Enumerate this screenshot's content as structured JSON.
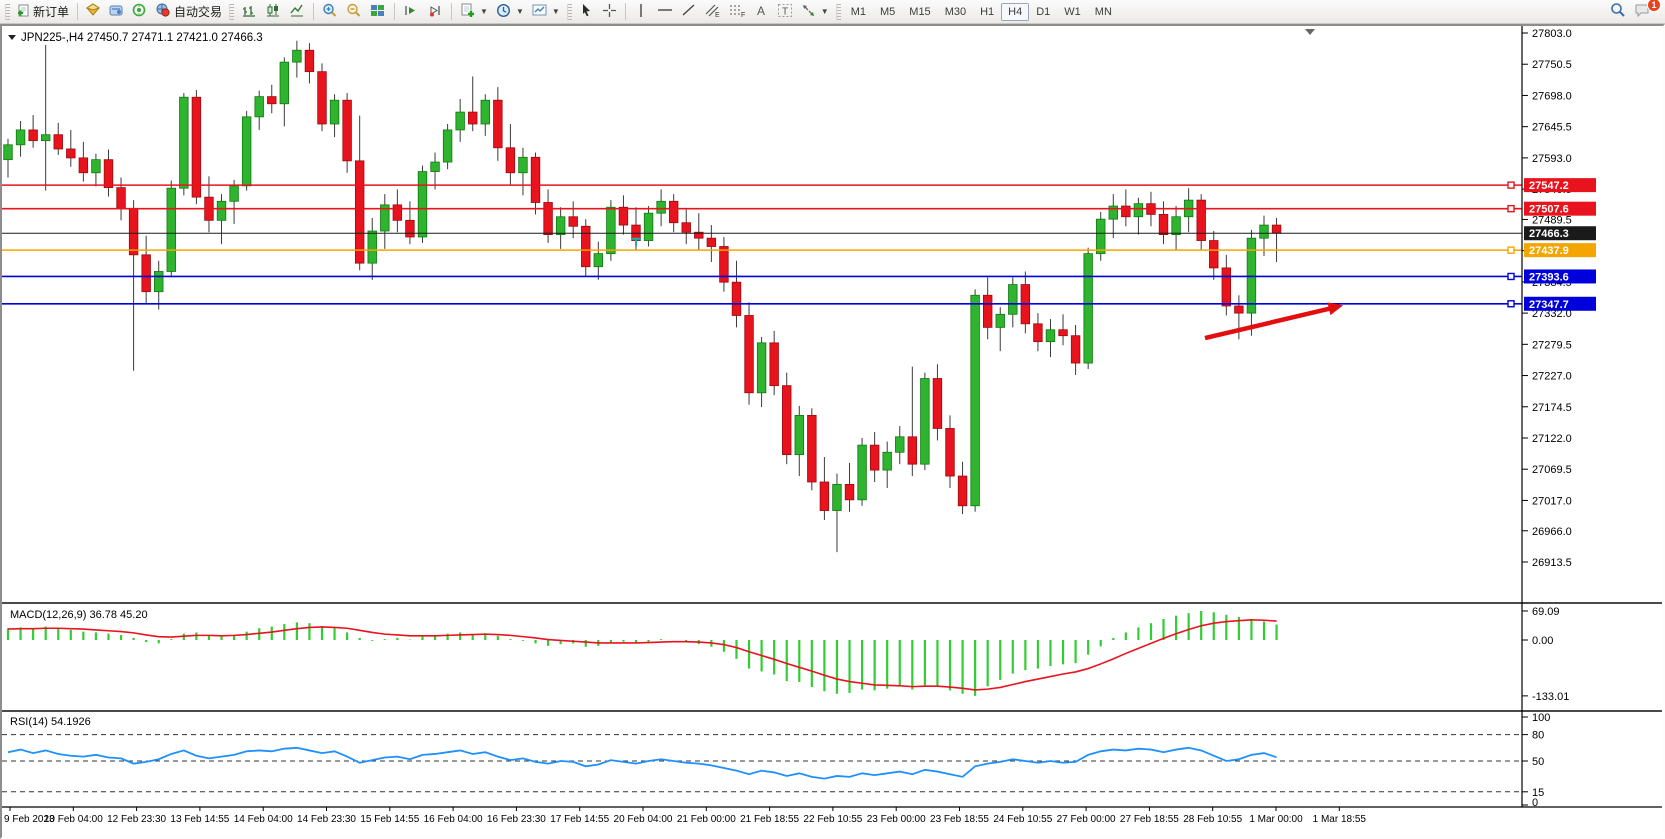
{
  "toolbar": {
    "new_order_label": "新订单",
    "auto_trading_label": "自动交易",
    "timeframes": [
      "M1",
      "M5",
      "M15",
      "M30",
      "H1",
      "H4",
      "D1",
      "W1",
      "MN"
    ],
    "active_timeframe": "H4",
    "chat_badge_count": "1",
    "icons": {
      "new-order-icon": "page-plus",
      "market-watch-icon": "gold-gem",
      "data-window-icon": "blue-panel",
      "signal-icon": "green-broadcast",
      "auto-trading-icon": "red-blue-globe",
      "bars-chart-icon": "ohlc-bars",
      "candles-chart-icon": "candlestick",
      "line-chart-icon": "polyline",
      "zoom-in-icon": "magnifier-plus",
      "zoom-out-icon": "magnifier-minus",
      "tile-windows-icon": "green-blue-grid",
      "shift-chart-icon": "play-bar",
      "auto-scroll-icon": "play-dot",
      "indicators-icon": "doc-green-plus",
      "periods-icon": "clock",
      "templates-icon": "chart-doc",
      "cursor-icon": "pointer-arrow",
      "crosshair-icon": "crosshair",
      "vertical-line-icon": "vbar",
      "horizontal-line-icon": "hbar",
      "trendline-icon": "diagonal",
      "channel-icon": "double-diagonal-E",
      "fibonacci-icon": "dotted-F",
      "text-icon": "letter-A",
      "text-label-icon": "boxed-T",
      "shapes-icon": "arrows-star",
      "search-icon": "magnifier",
      "chat-icon": "speech-bubble"
    }
  },
  "chart": {
    "title_symbol": "JPN225-,H4",
    "title_ohlc": "27450.7 27471.1 27421.0 27466.3"
  },
  "chart_data": [
    {
      "type": "candlestick",
      "symbol": "JPN225-",
      "timeframe": "H4",
      "open": 27450.7,
      "high": 27471.1,
      "low": 27421.0,
      "close": 27466.3,
      "ylim": [
        26913.5,
        27803.0
      ],
      "grid": false,
      "colors": {
        "up": "#2fb42f",
        "up_edge": "#0f7a0f",
        "down": "#e8131d",
        "down_edge": "#9c0a10",
        "wick": "#3a3a3a"
      },
      "y_ticks": [
        27803.0,
        27750.5,
        27698.0,
        27645.5,
        27593.0,
        27540.5,
        27489.5,
        27437.0,
        27384.5,
        27332.0,
        27279.5,
        27227.0,
        27174.5,
        27122.0,
        27069.5,
        27017.0,
        26966.0,
        26913.5
      ],
      "x_labels": [
        "9 Feb 2023",
        "10 Feb 04:00",
        "12 Feb 23:30",
        "13 Feb 14:55",
        "14 Feb 04:00",
        "14 Feb 23:30",
        "15 Feb 14:55",
        "16 Feb 04:00",
        "16 Feb 23:30",
        "17 Feb 14:55",
        "20 Feb 04:00",
        "21 Feb 00:00",
        "21 Feb 18:55",
        "22 Feb 10:55",
        "23 Feb 00:00",
        "23 Feb 18:55",
        "24 Feb 10:55",
        "27 Feb 00:00",
        "27 Feb 18:55",
        "28 Feb 10:55",
        "1 Mar 00:00",
        "1 Mar 18:55"
      ],
      "hlines": [
        {
          "price": 27547.2,
          "color": "#e8131d",
          "style": "solid",
          "tag": "27547.2",
          "tag_text": "#ffffff"
        },
        {
          "price": 27507.6,
          "color": "#e8131d",
          "style": "solid",
          "tag": "27507.6",
          "tag_text": "#ffffff"
        },
        {
          "price": 27466.3,
          "color": "#1a1a1a",
          "style": "solid",
          "tag": "27466.3",
          "tag_text": "#ffffff",
          "current": true
        },
        {
          "price": 27437.9,
          "color": "#f5a500",
          "style": "solid",
          "tag": "27437.9",
          "tag_text": "#ffffff"
        },
        {
          "price": 27393.6,
          "color": "#0000dc",
          "style": "solid",
          "tag": "27393.6",
          "tag_text": "#ffffff"
        },
        {
          "price": 27347.7,
          "color": "#0000dc",
          "style": "solid",
          "tag": "27347.7",
          "tag_text": "#ffffff"
        }
      ],
      "annotations": [
        {
          "type": "arrow",
          "color": "#e50e0e",
          "from_index": 95.3,
          "from_price": 27290,
          "to_index": 106.3,
          "to_price": 27345
        },
        {
          "type": "t-marker",
          "color": "#1ab2a8",
          "index": 50,
          "price": 27457
        }
      ],
      "candles": [
        [
          27590,
          27625,
          27560,
          27615
        ],
        [
          27615,
          27655,
          27595,
          27640
        ],
        [
          27640,
          27665,
          27610,
          27622
        ],
        [
          27622,
          27783,
          27538,
          27632
        ],
        [
          27632,
          27652,
          27598,
          27608
        ],
        [
          27608,
          27640,
          27578,
          27593
        ],
        [
          27593,
          27620,
          27553,
          27568
        ],
        [
          27568,
          27600,
          27545,
          27590
        ],
        [
          27590,
          27607,
          27528,
          27543
        ],
        [
          27543,
          27560,
          27488,
          27508
        ],
        [
          27508,
          27522,
          27235,
          27430
        ],
        [
          27430,
          27462,
          27348,
          27368
        ],
        [
          27368,
          27420,
          27338,
          27402
        ],
        [
          27402,
          27555,
          27392,
          27542
        ],
        [
          27542,
          27702,
          27530,
          27695
        ],
        [
          27695,
          27707,
          27515,
          27527
        ],
        [
          27527,
          27562,
          27468,
          27488
        ],
        [
          27488,
          27532,
          27448,
          27520
        ],
        [
          27520,
          27556,
          27482,
          27546
        ],
        [
          27546,
          27672,
          27538,
          27662
        ],
        [
          27662,
          27706,
          27640,
          27696
        ],
        [
          27696,
          27716,
          27668,
          27684
        ],
        [
          27684,
          27762,
          27646,
          27754
        ],
        [
          27754,
          27790,
          27728,
          27774
        ],
        [
          27774,
          27786,
          27718,
          27738
        ],
        [
          27738,
          27752,
          27638,
          27650
        ],
        [
          27650,
          27700,
          27628,
          27690
        ],
        [
          27690,
          27702,
          27568,
          27588
        ],
        [
          27588,
          27664,
          27404,
          27416
        ],
        [
          27416,
          27492,
          27388,
          27470
        ],
        [
          27470,
          27532,
          27440,
          27514
        ],
        [
          27514,
          27540,
          27468,
          27488
        ],
        [
          27488,
          27520,
          27448,
          27460
        ],
        [
          27460,
          27580,
          27450,
          27570
        ],
        [
          27570,
          27602,
          27540,
          27586
        ],
        [
          27586,
          27650,
          27574,
          27640
        ],
        [
          27640,
          27692,
          27620,
          27670
        ],
        [
          27670,
          27730,
          27638,
          27650
        ],
        [
          27650,
          27700,
          27630,
          27690
        ],
        [
          27690,
          27712,
          27588,
          27610
        ],
        [
          27610,
          27650,
          27548,
          27568
        ],
        [
          27568,
          27610,
          27530,
          27594
        ],
        [
          27594,
          27602,
          27498,
          27518
        ],
        [
          27518,
          27540,
          27450,
          27464
        ],
        [
          27464,
          27510,
          27440,
          27494
        ],
        [
          27494,
          27520,
          27458,
          27478
        ],
        [
          27478,
          27490,
          27394,
          27410
        ],
        [
          27410,
          27452,
          27388,
          27432
        ],
        [
          27432,
          27522,
          27420,
          27510
        ],
        [
          27510,
          27530,
          27464,
          27480
        ],
        [
          27480,
          27510,
          27438,
          27454
        ],
        [
          27454,
          27512,
          27444,
          27500
        ],
        [
          27500,
          27540,
          27478,
          27520
        ],
        [
          27520,
          27532,
          27468,
          27484
        ],
        [
          27484,
          27506,
          27448,
          27468
        ],
        [
          27468,
          27500,
          27438,
          27458
        ],
        [
          27458,
          27480,
          27418,
          27444
        ],
        [
          27444,
          27460,
          27368,
          27384
        ],
        [
          27384,
          27420,
          27308,
          27328
        ],
        [
          27328,
          27350,
          27178,
          27198
        ],
        [
          27198,
          27292,
          27174,
          27282
        ],
        [
          27282,
          27302,
          27194,
          27210
        ],
        [
          27210,
          27232,
          27078,
          27094
        ],
        [
          27094,
          27176,
          27058,
          27160
        ],
        [
          27160,
          27172,
          27034,
          27048
        ],
        [
          27048,
          27090,
          26984,
          27000
        ],
        [
          27000,
          27062,
          26930,
          27044
        ],
        [
          27044,
          27080,
          26998,
          27018
        ],
        [
          27018,
          27122,
          27008,
          27110
        ],
        [
          27110,
          27132,
          27048,
          27068
        ],
        [
          27068,
          27116,
          27038,
          27098
        ],
        [
          27098,
          27142,
          27078,
          27124
        ],
        [
          27124,
          27242,
          27058,
          27078
        ],
        [
          27078,
          27232,
          27068,
          27222
        ],
        [
          27222,
          27246,
          27118,
          27138
        ],
        [
          27138,
          27160,
          27038,
          27058
        ],
        [
          27058,
          27082,
          26994,
          27008
        ],
        [
          27008,
          27372,
          26998,
          27362
        ],
        [
          27362,
          27392,
          27288,
          27308
        ],
        [
          27308,
          27342,
          27268,
          27330
        ],
        [
          27330,
          27392,
          27308,
          27380
        ],
        [
          27380,
          27402,
          27298,
          27314
        ],
        [
          27314,
          27332,
          27268,
          27284
        ],
        [
          27284,
          27322,
          27258,
          27304
        ],
        [
          27304,
          27330,
          27278,
          27294
        ],
        [
          27294,
          27312,
          27228,
          27248
        ],
        [
          27248,
          27442,
          27238,
          27432
        ],
        [
          27432,
          27502,
          27420,
          27490
        ],
        [
          27490,
          27532,
          27458,
          27512
        ],
        [
          27512,
          27540,
          27478,
          27494
        ],
        [
          27494,
          27526,
          27464,
          27516
        ],
        [
          27516,
          27536,
          27478,
          27498
        ],
        [
          27498,
          27520,
          27448,
          27464
        ],
        [
          27464,
          27512,
          27438,
          27494
        ],
        [
          27494,
          27542,
          27468,
          27522
        ],
        [
          27522,
          27532,
          27438,
          27454
        ],
        [
          27454,
          27470,
          27388,
          27408
        ],
        [
          27408,
          27430,
          27328,
          27344
        ],
        [
          27344,
          27362,
          27288,
          27332
        ],
        [
          27332,
          27472,
          27294,
          27458
        ],
        [
          27458,
          27496,
          27428,
          27480
        ],
        [
          27480,
          27492,
          27418,
          27466.3
        ]
      ]
    },
    {
      "type": "macd",
      "label": "MACD(12,26,9) 36.78 45.20",
      "params": [
        12,
        26,
        9
      ],
      "value_main": 36.78,
      "value_signal": 45.2,
      "axis_ticks": [
        69.09,
        0.0,
        -133.01
      ],
      "colors": {
        "histogram": "#32cd32",
        "signal": "#e8131d"
      },
      "histogram": [
        28,
        30,
        26,
        32,
        27,
        24,
        20,
        18,
        15,
        12,
        5,
        -5,
        -8,
        2,
        15,
        18,
        10,
        8,
        12,
        20,
        28,
        32,
        38,
        42,
        40,
        33,
        28,
        18,
        5,
        -2,
        2,
        5,
        1,
        8,
        12,
        15,
        18,
        14,
        16,
        10,
        2,
        -2,
        -8,
        -14,
        -10,
        -8,
        -16,
        -14,
        -6,
        -4,
        -8,
        -4,
        2,
        0,
        -4,
        -10,
        -16,
        -28,
        -45,
        -68,
        -75,
        -82,
        -98,
        -100,
        -112,
        -122,
        -128,
        -126,
        -118,
        -120,
        -116,
        -110,
        -118,
        -108,
        -112,
        -120,
        -128,
        -133,
        -110,
        -95,
        -80,
        -72,
        -68,
        -62,
        -58,
        -55,
        -35,
        -15,
        5,
        18,
        30,
        40,
        50,
        58,
        64,
        69,
        66,
        60,
        55,
        50,
        44,
        36.78
      ],
      "signal": [
        26,
        27,
        27,
        28,
        28,
        27,
        26,
        24,
        22,
        20,
        17,
        12,
        8,
        7,
        9,
        11,
        11,
        10,
        11,
        13,
        16,
        19,
        23,
        27,
        30,
        31,
        30,
        28,
        23,
        18,
        14,
        12,
        10,
        10,
        10,
        11,
        12,
        13,
        14,
        13,
        11,
        8,
        5,
        1,
        -1,
        -3,
        -5,
        -7,
        -7,
        -7,
        -7,
        -6,
        -5,
        -4,
        -4,
        -5,
        -7,
        -11,
        -18,
        -28,
        -37,
        -46,
        -56,
        -65,
        -74,
        -84,
        -93,
        -99,
        -103,
        -107,
        -108,
        -109,
        -111,
        -110,
        -110,
        -112,
        -115,
        -119,
        -117,
        -113,
        -106,
        -99,
        -93,
        -87,
        -81,
        -76,
        -68,
        -57,
        -45,
        -32,
        -20,
        -8,
        4,
        15,
        25,
        34,
        40,
        44,
        46,
        48,
        47,
        45.2
      ]
    },
    {
      "type": "rsi",
      "label": "RSI(14) 54.1926",
      "period": 14,
      "value": 54.1926,
      "axis_ticks": [
        100,
        80,
        50,
        15,
        0
      ],
      "levels": [
        80,
        50,
        15
      ],
      "ylim": [
        0,
        100
      ],
      "color": "#1e90ff",
      "values": [
        60,
        63,
        59,
        62,
        58,
        56,
        55,
        57,
        54,
        53,
        47,
        49,
        52,
        58,
        62,
        56,
        53,
        55,
        57,
        61,
        62,
        61,
        64,
        65,
        62,
        59,
        61,
        55,
        48,
        51,
        54,
        55,
        52,
        57,
        58,
        60,
        62,
        58,
        60,
        55,
        51,
        53,
        49,
        47,
        50,
        49,
        44,
        46,
        51,
        49,
        47,
        50,
        52,
        50,
        48,
        47,
        45,
        42,
        39,
        35,
        39,
        37,
        33,
        36,
        32,
        30,
        33,
        32,
        36,
        34,
        36,
        38,
        35,
        40,
        38,
        35,
        32,
        44,
        47,
        49,
        52,
        50,
        48,
        50,
        48,
        49,
        57,
        61,
        63,
        62,
        64,
        63,
        60,
        63,
        65,
        62,
        56,
        50,
        52,
        57,
        59,
        54.19
      ]
    }
  ]
}
